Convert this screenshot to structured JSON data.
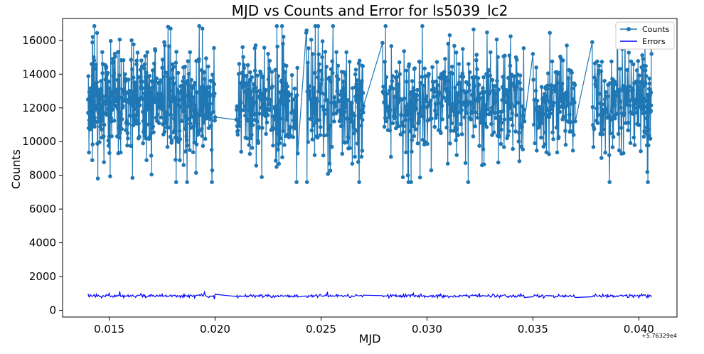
{
  "chart_data": {
    "type": "line",
    "title": "MJD vs Counts and Error for ls5039_lc2",
    "xlabel": "MJD",
    "ylabel": "Counts",
    "x_offset_label": "+5.76329e4",
    "xlim": [
      0.0128,
      0.0418
    ],
    "ylim": [
      -400,
      17300
    ],
    "x_ticks": [
      0.015,
      0.02,
      0.025,
      0.03,
      0.035,
      0.04
    ],
    "x_tick_labels": [
      "0.015",
      "0.020",
      "0.025",
      "0.030",
      "0.035",
      "0.040"
    ],
    "y_ticks": [
      0,
      2000,
      4000,
      6000,
      8000,
      10000,
      12000,
      14000,
      16000
    ],
    "y_tick_labels": [
      "0",
      "2000",
      "4000",
      "6000",
      "8000",
      "10000",
      "12000",
      "14000",
      "16000"
    ],
    "grid": false,
    "legend_position": "top-right",
    "observation_segments": [
      [
        0.014,
        0.02
      ],
      [
        0.021,
        0.0239
      ],
      [
        0.0243,
        0.027
      ],
      [
        0.0279,
        0.0346
      ],
      [
        0.035,
        0.037
      ],
      [
        0.0378,
        0.0406
      ]
    ],
    "series": [
      {
        "name": "Counts",
        "color": "#1f77b4",
        "marker": "circle",
        "mean": 12300,
        "spread": 1800,
        "min": 7600,
        "max": 16850,
        "points": [
          [
            0.014,
            12500
          ],
          [
            0.0142,
            8900
          ],
          [
            0.0143,
            16850
          ],
          [
            0.0145,
            11200
          ],
          [
            0.0147,
            14600
          ],
          [
            0.015,
            10300
          ],
          [
            0.0152,
            13900
          ],
          [
            0.0155,
            16050
          ],
          [
            0.0158,
            11100
          ],
          [
            0.0161,
            7850
          ],
          [
            0.0163,
            14800
          ],
          [
            0.0166,
            9900
          ],
          [
            0.0168,
            15300
          ],
          [
            0.017,
            8050
          ],
          [
            0.0173,
            12700
          ],
          [
            0.0176,
            15900
          ],
          [
            0.0179,
            16700
          ],
          [
            0.0182,
            10100
          ],
          [
            0.0185,
            14400
          ],
          [
            0.0188,
            9500
          ],
          [
            0.0191,
            8150
          ],
          [
            0.0194,
            16700
          ],
          [
            0.0197,
            10800
          ],
          [
            0.02,
            11450
          ],
          [
            0.021,
            11300
          ],
          [
            0.0213,
            15600
          ],
          [
            0.0216,
            9800
          ],
          [
            0.0219,
            13200
          ],
          [
            0.0222,
            7900
          ],
          [
            0.0225,
            15200
          ],
          [
            0.0229,
            8500
          ],
          [
            0.0232,
            15800
          ],
          [
            0.0235,
            10700
          ],
          [
            0.0239,
            9300
          ],
          [
            0.0243,
            16450
          ],
          [
            0.0247,
            9200
          ],
          [
            0.025,
            14200
          ],
          [
            0.0254,
            8700
          ],
          [
            0.0258,
            14500
          ],
          [
            0.0262,
            15300
          ],
          [
            0.0266,
            9100
          ],
          [
            0.0268,
            7600
          ],
          [
            0.027,
            12100
          ],
          [
            0.0279,
            15850
          ],
          [
            0.0283,
            9100
          ],
          [
            0.0287,
            14700
          ],
          [
            0.0291,
            8000
          ],
          [
            0.0294,
            14300
          ],
          [
            0.0298,
            10100
          ],
          [
            0.0302,
            8300
          ],
          [
            0.0306,
            13800
          ],
          [
            0.031,
            15800
          ],
          [
            0.0314,
            9200
          ],
          [
            0.0318,
            12900
          ],
          [
            0.0322,
            16650
          ],
          [
            0.0326,
            8600
          ],
          [
            0.033,
            15300
          ],
          [
            0.0334,
            10300
          ],
          [
            0.0338,
            12800
          ],
          [
            0.0342,
            15000
          ],
          [
            0.0346,
            11200
          ],
          [
            0.035,
            15200
          ],
          [
            0.0355,
            9700
          ],
          [
            0.0358,
            16450
          ],
          [
            0.0362,
            10200
          ],
          [
            0.0366,
            15700
          ],
          [
            0.037,
            11200
          ],
          [
            0.0378,
            15900
          ],
          [
            0.0382,
            10500
          ],
          [
            0.0386,
            9200
          ],
          [
            0.039,
            16100
          ],
          [
            0.0394,
            13100
          ],
          [
            0.0398,
            9800
          ],
          [
            0.0402,
            14900
          ],
          [
            0.0404,
            8200
          ],
          [
            0.0406,
            15200
          ]
        ]
      },
      {
        "name": "Errors",
        "color": "#0000ff",
        "marker": "none",
        "mean": 850,
        "spread": 90,
        "points": [
          [
            0.014,
            980
          ],
          [
            0.0145,
            900
          ],
          [
            0.015,
            1010
          ],
          [
            0.0155,
            1120
          ],
          [
            0.016,
            880
          ],
          [
            0.0165,
            990
          ],
          [
            0.017,
            920
          ],
          [
            0.0175,
            960
          ],
          [
            0.018,
            870
          ],
          [
            0.0185,
            930
          ],
          [
            0.019,
            900
          ],
          [
            0.0195,
            1080
          ],
          [
            0.02,
            950
          ],
          [
            0.021,
            820
          ],
          [
            0.0215,
            780
          ],
          [
            0.022,
            850
          ],
          [
            0.0225,
            930
          ],
          [
            0.023,
            800
          ],
          [
            0.0235,
            880
          ],
          [
            0.0239,
            790
          ],
          [
            0.0243,
            850
          ],
          [
            0.0248,
            900
          ],
          [
            0.0253,
            1090
          ],
          [
            0.0258,
            920
          ],
          [
            0.0263,
            850
          ],
          [
            0.027,
            900
          ],
          [
            0.0279,
            870
          ],
          [
            0.0285,
            830
          ],
          [
            0.029,
            950
          ],
          [
            0.0295,
            870
          ],
          [
            0.03,
            800
          ],
          [
            0.0305,
            750
          ],
          [
            0.031,
            820
          ],
          [
            0.0315,
            780
          ],
          [
            0.032,
            750
          ],
          [
            0.0325,
            800
          ],
          [
            0.033,
            780
          ],
          [
            0.0335,
            820
          ],
          [
            0.034,
            790
          ],
          [
            0.0346,
            760
          ],
          [
            0.035,
            800
          ],
          [
            0.0355,
            720
          ],
          [
            0.036,
            760
          ],
          [
            0.0365,
            790
          ],
          [
            0.037,
            760
          ],
          [
            0.0378,
            800
          ],
          [
            0.0385,
            760
          ],
          [
            0.039,
            820
          ],
          [
            0.0395,
            770
          ],
          [
            0.04,
            740
          ],
          [
            0.0406,
            780
          ]
        ]
      }
    ]
  }
}
